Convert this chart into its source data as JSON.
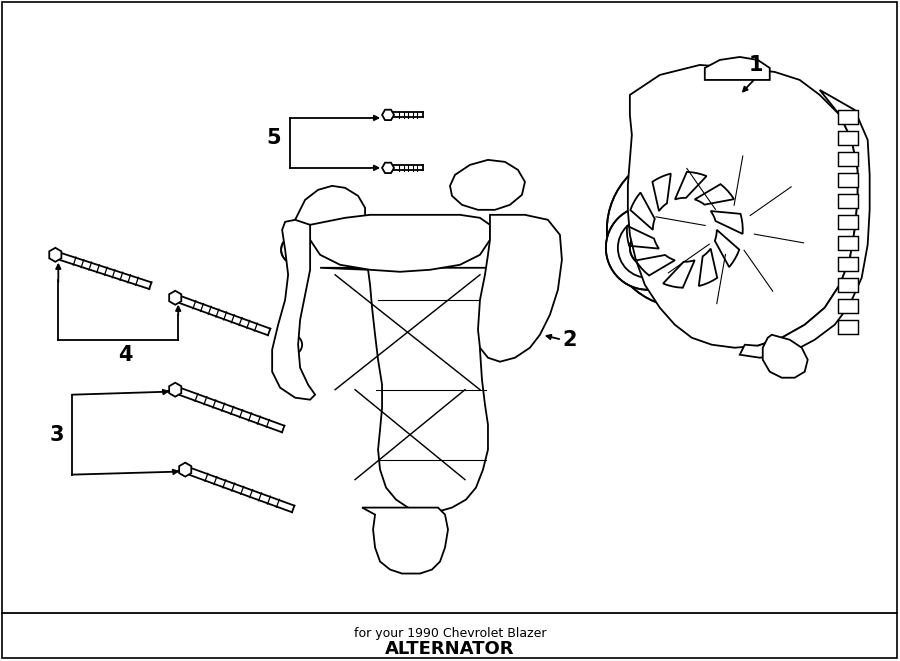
{
  "title": "ALTERNATOR",
  "subtitle": "for your 1990 Chevrolet Blazer",
  "bg_color": "#ffffff",
  "line_color": "#000000",
  "text_color": "#000000",
  "label_fontsize": 15,
  "lw": 1.3
}
